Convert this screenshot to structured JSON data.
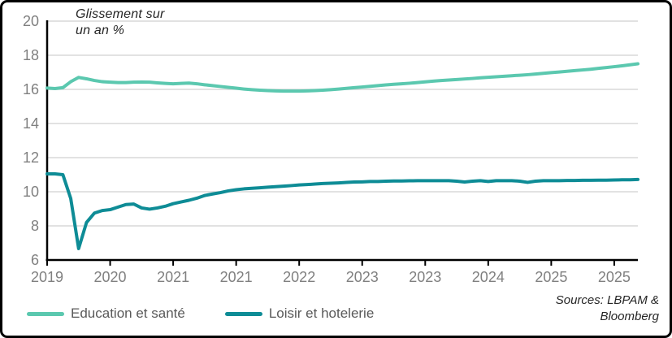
{
  "frame": {
    "background": "#ffffff",
    "border_color": "#000000"
  },
  "title": {
    "line1": "Glissement sur",
    "line2": "un an %"
  },
  "source": {
    "line1": "Sources: LBPAM &",
    "line2": "Bloomberg"
  },
  "legend": [
    {
      "label": "Education et santé",
      "color": "#5bc8af"
    },
    {
      "label": "Loisir et hotelerie",
      "color": "#0e8c96"
    }
  ],
  "chart_data": {
    "type": "line",
    "title": "Glissement sur un an %",
    "xlabel": "",
    "ylabel": "Glissement sur un an %",
    "ylim": [
      6,
      20
    ],
    "y_ticks": [
      6,
      8,
      10,
      12,
      14,
      16,
      18,
      20
    ],
    "grid": true,
    "legend_position": "bottom",
    "x_months_total": 75,
    "x_tick_months": [
      0,
      8,
      16,
      24,
      32,
      40,
      48,
      56,
      64,
      72
    ],
    "x_tick_labels": [
      "2019",
      "2020",
      "2021",
      "2021",
      "2022",
      "2023",
      "2023",
      "2024",
      "2025",
      "2025"
    ],
    "axis_color": "#000000",
    "gridline_color": "#d9d9d9",
    "tick_label_color": "#808080",
    "series": [
      {
        "name": "Education et santé",
        "color": "#5bc8af",
        "values": [
          16.08,
          16.05,
          16.1,
          16.45,
          16.7,
          16.62,
          16.52,
          16.45,
          16.42,
          16.4,
          16.4,
          16.42,
          16.43,
          16.42,
          16.38,
          16.35,
          16.33,
          16.35,
          16.37,
          16.33,
          16.27,
          16.22,
          16.17,
          16.12,
          16.07,
          16.02,
          15.98,
          15.95,
          15.93,
          15.91,
          15.9,
          15.9,
          15.9,
          15.91,
          15.93,
          15.95,
          15.98,
          16.02,
          16.06,
          16.1,
          16.14,
          16.18,
          16.22,
          16.26,
          16.3,
          16.33,
          16.36,
          16.4,
          16.44,
          16.48,
          16.52,
          16.55,
          16.58,
          16.61,
          16.64,
          16.68,
          16.71,
          16.74,
          16.77,
          16.8,
          16.83,
          16.86,
          16.9,
          16.94,
          16.98,
          17.02,
          17.06,
          17.1,
          17.14,
          17.18,
          17.23,
          17.28,
          17.33,
          17.38,
          17.44,
          17.5
        ]
      },
      {
        "name": "Loisir et hotelerie",
        "color": "#0e8c96",
        "values": [
          11.05,
          11.05,
          11.0,
          9.6,
          6.67,
          8.2,
          8.75,
          8.9,
          8.95,
          9.1,
          9.25,
          9.28,
          9.05,
          8.98,
          9.05,
          9.15,
          9.3,
          9.4,
          9.5,
          9.62,
          9.78,
          9.87,
          9.95,
          10.05,
          10.12,
          10.17,
          10.2,
          10.23,
          10.27,
          10.3,
          10.33,
          10.36,
          10.4,
          10.42,
          10.45,
          10.48,
          10.5,
          10.52,
          10.55,
          10.57,
          10.58,
          10.6,
          10.6,
          10.62,
          10.63,
          10.63,
          10.64,
          10.65,
          10.65,
          10.65,
          10.65,
          10.65,
          10.62,
          10.57,
          10.62,
          10.65,
          10.6,
          10.65,
          10.65,
          10.65,
          10.62,
          10.55,
          10.62,
          10.65,
          10.65,
          10.65,
          10.66,
          10.66,
          10.67,
          10.67,
          10.68,
          10.68,
          10.69,
          10.7,
          10.7,
          10.72
        ]
      }
    ]
  }
}
